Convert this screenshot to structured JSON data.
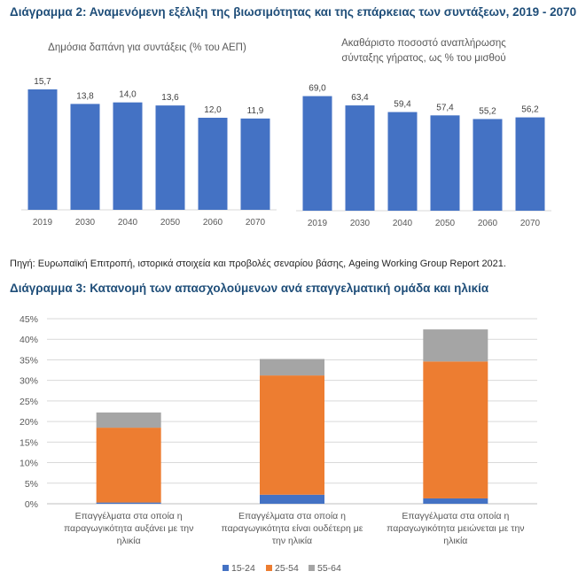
{
  "titles": {
    "chart2": "Διάγραμμα 2: Αναμενόμενη εξέλιξη της βιωσιμότητας και της επάρκειας των συντάξεων, 2019 - 2070",
    "chart3": "Διάγραμμα 3: Κατανομή των απασχολούμενων ανά επαγγελματική ομάδα και ηλικία"
  },
  "source": "Πηγή: Ευρωπαϊκή Επιτροπή, ιστορικά στοιχεία και προβολές σεναρίου βάσης, Ageing Working Group Report 2021.",
  "colors": {
    "blue": "#4472c4",
    "orange": "#ed7d31",
    "gray": "#a5a5a5",
    "title": "#1f4e79"
  },
  "chart_data": [
    {
      "id": "spending",
      "type": "bar",
      "title": "Δημόσια δαπάνη για συντάξεις (% του ΑΕΠ)",
      "categories": [
        "2019",
        "2030",
        "2040",
        "2050",
        "2060",
        "2070"
      ],
      "values": [
        15.7,
        13.8,
        14.0,
        13.6,
        12.0,
        11.9
      ],
      "labels": [
        "15,7",
        "13,8",
        "14,0",
        "13,6",
        "12,0",
        "11,9"
      ],
      "ylim": [
        0,
        16.5
      ]
    },
    {
      "id": "replacement",
      "type": "bar",
      "title_lines": [
        "Ακαθάριστο ποσοστό αναπλήρωσης",
        "σύνταξης γήρατος, ως % του μισθού"
      ],
      "categories": [
        "2019",
        "2030",
        "2040",
        "2050",
        "2060",
        "2070"
      ],
      "values": [
        69.0,
        63.4,
        59.4,
        57.4,
        55.2,
        56.2
      ],
      "labels": [
        "69,0",
        "63,4",
        "59,4",
        "57,4",
        "55,2",
        "56,2"
      ],
      "ylim": [
        0,
        72.5
      ]
    },
    {
      "id": "employment",
      "type": "bar",
      "stacked": true,
      "categories": [
        [
          "Επαγγέλματα στα οποία η",
          "παραγωγικότητα αυξάνει με την",
          "ηλικία"
        ],
        [
          "Επαγγέλματα στα οποία η",
          "παραγωγικότητα είναι ουδέτερη με",
          "την ηλικία"
        ],
        [
          "Επαγγέλματα στα οποία η",
          "παραγωγικότητα μειώνεται με την",
          "ηλικία"
        ]
      ],
      "series": [
        {
          "name": "15-24",
          "values": [
            0.3,
            2.2,
            1.3
          ],
          "color": "#4472c4"
        },
        {
          "name": "25-54",
          "values": [
            18.2,
            29.0,
            33.3
          ],
          "color": "#ed7d31"
        },
        {
          "name": "55-64",
          "values": [
            3.7,
            4.0,
            7.8
          ],
          "color": "#a5a5a5"
        }
      ],
      "yticks": [
        "0%",
        "5%",
        "10%",
        "15%",
        "20%",
        "25%",
        "30%",
        "35%",
        "40%",
        "45%"
      ],
      "ylim": [
        0,
        45
      ]
    }
  ]
}
